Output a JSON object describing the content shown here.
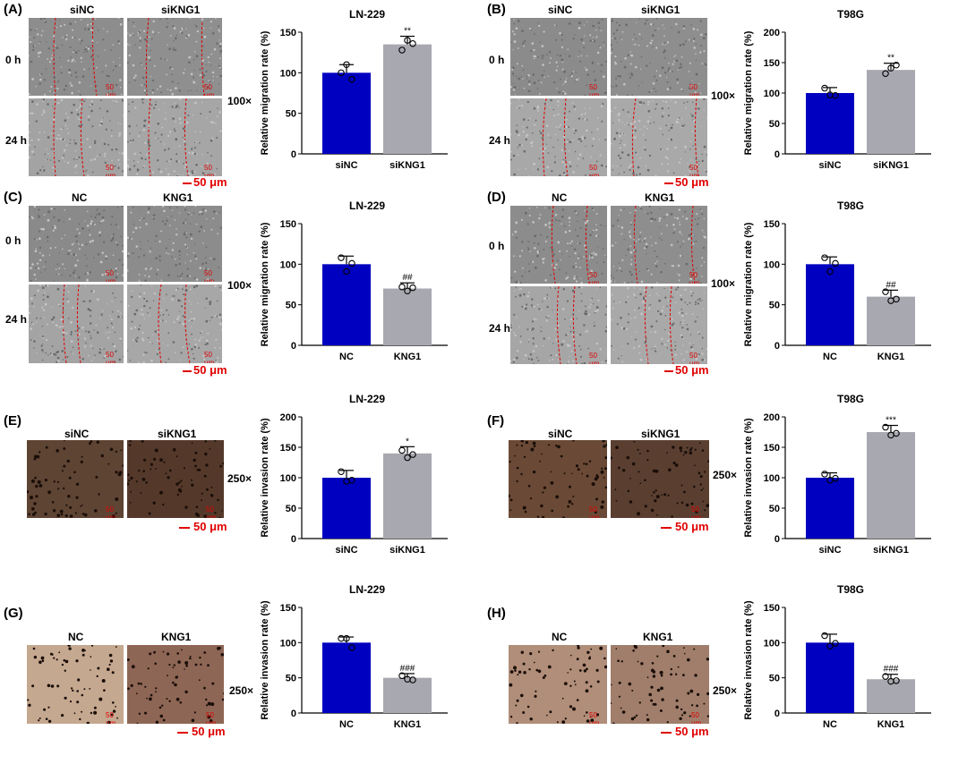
{
  "panels": [
    {
      "label": "(A)",
      "col_labels": [
        "siNC",
        "siKNG1"
      ],
      "row_labels": [
        "0 h",
        "24 h"
      ],
      "small_scale": "50 μm",
      "big_scale": "50 μm",
      "magnification": "100×",
      "kind": "scratch"
    },
    {
      "label": "(B)",
      "col_labels": [
        "siNC",
        "siKNG1"
      ],
      "row_labels": [
        "0 h",
        "24 h"
      ],
      "small_scale": "50 μm",
      "big_scale": "50 μm",
      "magnification": "100×",
      "kind": "scratch"
    },
    {
      "label": "(C)",
      "col_labels": [
        "NC",
        "KNG1"
      ],
      "row_labels": [
        "0 h",
        "24 h"
      ],
      "small_scale": "50 μm",
      "big_scale": "50 μm",
      "magnification": "100×",
      "kind": "scratch"
    },
    {
      "label": "(D)",
      "col_labels": [
        "NC",
        "KNG1"
      ],
      "row_labels": [
        "0 h",
        "24 h"
      ],
      "small_scale": "50 μm",
      "big_scale": "50 μm",
      "magnification": "100×",
      "kind": "scratch"
    },
    {
      "label": "(E)",
      "col_labels": [
        "siNC",
        "siKNG1"
      ],
      "row_labels": [],
      "small_scale": "50 μm",
      "big_scale": "50 μm",
      "magnification": "250×",
      "kind": "invasion-dark"
    },
    {
      "label": "(F)",
      "col_labels": [
        "siNC",
        "siKNG1"
      ],
      "row_labels": [],
      "small_scale": "50 μm",
      "big_scale": "50 μm",
      "magnification": "250×",
      "kind": "invasion-dark"
    },
    {
      "label": "(G)",
      "col_labels": [
        "NC",
        "KNG1"
      ],
      "row_labels": [],
      "small_scale": "50 μm",
      "big_scale": "50 μm",
      "magnification": "250×",
      "kind": "invasion-light"
    },
    {
      "label": "(H)",
      "col_labels": [
        "NC",
        "KNG1"
      ],
      "row_labels": [],
      "small_scale": "50 μm",
      "big_scale": "50 μm",
      "magnification": "250×",
      "kind": "invasion-light"
    }
  ],
  "colors": {
    "control_bar": "#0000c0",
    "treated_bar": "#a8a8b0",
    "scratch_line": "#e00000"
  },
  "chart_data": [
    {
      "type": "bar",
      "title": "LN-229",
      "ylabel": "Relative migration rate (%)",
      "ylim": [
        0,
        150
      ],
      "yticks": [
        0,
        50,
        100,
        150
      ],
      "categories": [
        "siNC",
        "siKNG1"
      ],
      "values": [
        100,
        135
      ],
      "errors": [
        10,
        10
      ],
      "points": [
        [
          100,
          110,
          92
        ],
        [
          128,
          140,
          136
        ]
      ],
      "annotation": "**"
    },
    {
      "type": "bar",
      "title": "T98G",
      "ylabel": "Relative migration rate (%)",
      "ylim": [
        0,
        200
      ],
      "yticks": [
        0,
        50,
        100,
        150,
        200
      ],
      "categories": [
        "siNC",
        "siKNG1"
      ],
      "values": [
        100,
        138
      ],
      "errors": [
        9,
        11
      ],
      "points": [
        [
          108,
          97,
          96
        ],
        [
          132,
          141,
          146
        ]
      ],
      "annotation": "**"
    },
    {
      "type": "bar",
      "title": "LN-229",
      "ylabel": "Relative migration rate (%)",
      "ylim": [
        0,
        150
      ],
      "yticks": [
        0,
        50,
        100,
        150
      ],
      "categories": [
        "NC",
        "KNG1"
      ],
      "values": [
        100,
        70
      ],
      "errors": [
        10,
        7
      ],
      "points": [
        [
          108,
          91,
          101
        ],
        [
          72,
          67,
          71
        ]
      ],
      "annotation": "##"
    },
    {
      "type": "bar",
      "title": "T98G",
      "ylabel": "Relative migration rate (%)",
      "ylim": [
        0,
        150
      ],
      "yticks": [
        0,
        50,
        100,
        150
      ],
      "categories": [
        "NC",
        "KNG1"
      ],
      "values": [
        100,
        60
      ],
      "errors": [
        9,
        8
      ],
      "points": [
        [
          108,
          91,
          101
        ],
        [
          66,
          55,
          57
        ]
      ],
      "annotation": "##"
    },
    {
      "type": "bar",
      "title": "LN-229",
      "ylabel": "Relative invasion rate (%)",
      "ylim": [
        0,
        200
      ],
      "yticks": [
        0,
        50,
        100,
        150,
        200
      ],
      "categories": [
        "siNC",
        "siKNG1"
      ],
      "values": [
        100,
        140
      ],
      "errors": [
        12,
        11
      ],
      "points": [
        [
          110,
          94,
          96
        ],
        [
          145,
          133,
          138
        ]
      ],
      "annotation": "*"
    },
    {
      "type": "bar",
      "title": "T98G",
      "ylabel": "Relative invasion rate (%)",
      "ylim": [
        0,
        200
      ],
      "yticks": [
        0,
        50,
        100,
        150,
        200
      ],
      "categories": [
        "siNC",
        "siKNG1"
      ],
      "values": [
        100,
        175
      ],
      "errors": [
        8,
        11
      ],
      "points": [
        [
          106,
          96,
          99
        ],
        [
          183,
          170,
          173
        ]
      ],
      "annotation": "***"
    },
    {
      "type": "bar",
      "title": "LN-229",
      "ylabel": "Relative invasion rate (%)",
      "ylim": [
        0,
        150
      ],
      "yticks": [
        0,
        50,
        100,
        150
      ],
      "categories": [
        "NC",
        "KNG1"
      ],
      "values": [
        100,
        50
      ],
      "errors": [
        8,
        6
      ],
      "points": [
        [
          106,
          106,
          93
        ],
        [
          53,
          48,
          47
        ]
      ],
      "annotation": "###"
    },
    {
      "type": "bar",
      "title": "T98G",
      "ylabel": "Relative invasion rate (%)",
      "ylim": [
        0,
        150
      ],
      "yticks": [
        0,
        50,
        100,
        150
      ],
      "categories": [
        "NC",
        "KNG1"
      ],
      "values": [
        100,
        48
      ],
      "errors": [
        12,
        7
      ],
      "points": [
        [
          110,
          95,
          99
        ],
        [
          52,
          45,
          46
        ]
      ],
      "annotation": "###"
    }
  ]
}
